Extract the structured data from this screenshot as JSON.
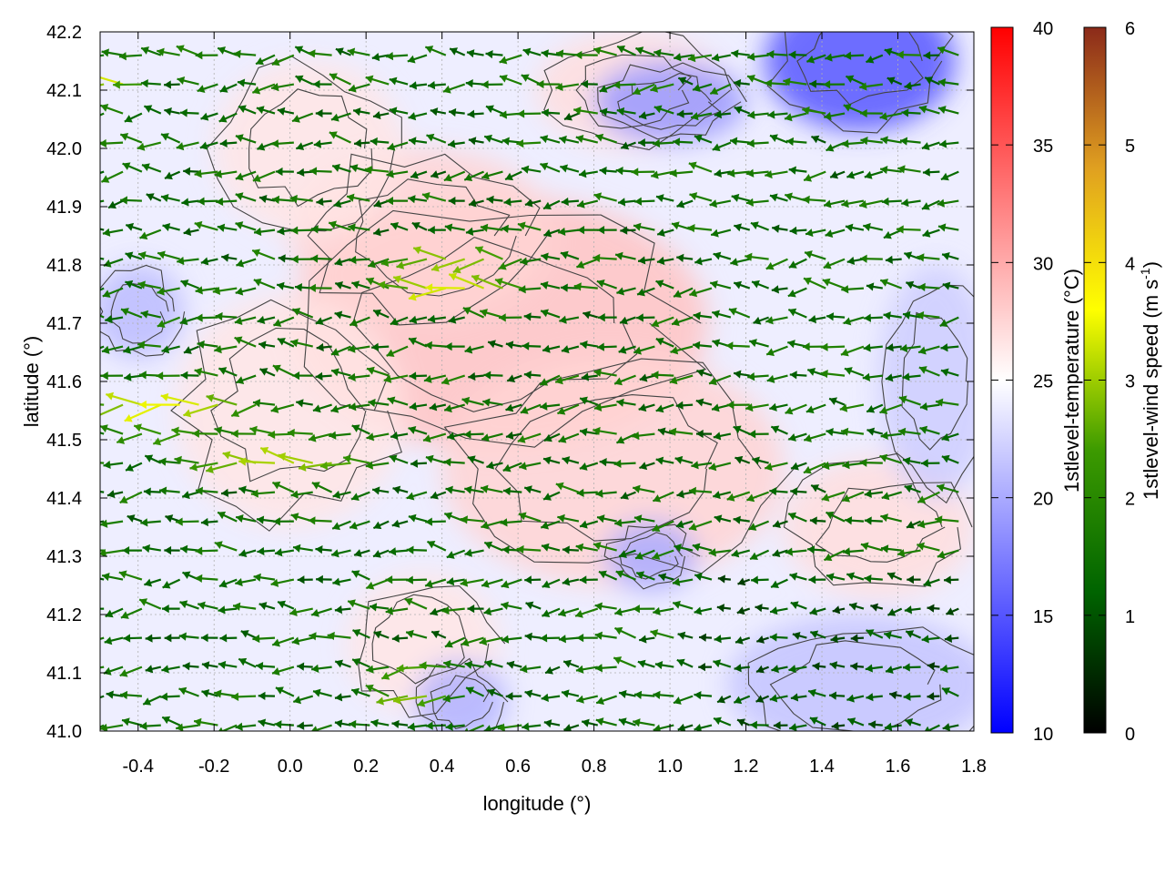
{
  "chart_data": {
    "type": "heatmap",
    "title": "",
    "xlabel": "longitude (°)",
    "ylabel": "latitude (°)",
    "xlim": [
      -0.5,
      1.8
    ],
    "ylim": [
      41.0,
      42.2
    ],
    "x_ticks": [
      "-0.4",
      "-0.2",
      "0.0",
      "0.2",
      "0.4",
      "0.6",
      "0.8",
      "1.0",
      "1.2",
      "1.4",
      "1.6",
      "1.8"
    ],
    "y_ticks": [
      "41.0",
      "41.1",
      "41.2",
      "41.3",
      "41.4",
      "41.5",
      "41.6",
      "41.7",
      "41.8",
      "41.9",
      "42.0",
      "42.1",
      "42.2"
    ],
    "grid": true,
    "temperature_colorbar": {
      "label": "1stlevel-temperature (°C)",
      "range": [
        10,
        40
      ],
      "ticks": [
        "10",
        "15",
        "20",
        "25",
        "30",
        "35",
        "40"
      ],
      "colors": [
        "#0000ff",
        "#ffffff",
        "#ff0000"
      ]
    },
    "wind_colorbar": {
      "label_main": "1stlevel-wind speed (m s",
      "label_sup": "-1",
      "label_end": ")",
      "range": [
        0,
        6
      ],
      "ticks": [
        "0",
        "1",
        "2",
        "3",
        "4",
        "5",
        "6"
      ],
      "colors": [
        "#000000",
        "#006400",
        "#3c9a00",
        "#ffff00",
        "#e0a020",
        "#8b2a1a"
      ]
    },
    "temperature_field": {
      "background_c": 24,
      "anomalies": [
        {
          "lon": 0.55,
          "lat": 41.7,
          "rx": 0.55,
          "ry": 0.22,
          "t_c": 28.5
        },
        {
          "lon": 0.85,
          "lat": 41.45,
          "rx": 0.45,
          "ry": 0.2,
          "t_c": 27.5
        },
        {
          "lon": 0.35,
          "lat": 41.85,
          "rx": 0.35,
          "ry": 0.15,
          "t_c": 27.5
        },
        {
          "lon": 0.0,
          "lat": 41.55,
          "rx": 0.3,
          "ry": 0.2,
          "t_c": 26.5
        },
        {
          "lon": 0.9,
          "lat": 42.1,
          "rx": 0.25,
          "ry": 0.1,
          "t_c": 27.0
        },
        {
          "lon": 1.55,
          "lat": 41.35,
          "rx": 0.25,
          "ry": 0.12,
          "t_c": 27.0
        },
        {
          "lon": 0.35,
          "lat": 41.15,
          "rx": 0.2,
          "ry": 0.12,
          "t_c": 26.5
        },
        {
          "lon": 0.05,
          "lat": 42.0,
          "rx": 0.25,
          "ry": 0.15,
          "t_c": 26.5
        },
        {
          "lon": 1.5,
          "lat": 42.15,
          "rx": 0.25,
          "ry": 0.12,
          "t_c": 15.0
        },
        {
          "lon": 1.0,
          "lat": 42.08,
          "rx": 0.2,
          "ry": 0.07,
          "t_c": 19.0
        },
        {
          "lon": 1.5,
          "lat": 41.08,
          "rx": 0.35,
          "ry": 0.12,
          "t_c": 21.5
        },
        {
          "lon": 0.95,
          "lat": 41.3,
          "rx": 0.12,
          "ry": 0.06,
          "t_c": 20.0
        },
        {
          "lon": -0.4,
          "lat": 41.72,
          "rx": 0.12,
          "ry": 0.08,
          "t_c": 21.0
        },
        {
          "lon": 1.7,
          "lat": 41.6,
          "rx": 0.15,
          "ry": 0.2,
          "t_c": 22.0
        },
        {
          "lon": 0.45,
          "lat": 41.05,
          "rx": 0.12,
          "ry": 0.07,
          "t_c": 20.5
        }
      ]
    },
    "wind_field": {
      "grid_lon_start": -0.49,
      "grid_lon_step": 0.05,
      "grid_lat_start": 41.01,
      "grid_lat_step": 0.05,
      "note_direction": "predominantly easterly (arrows point west)",
      "speed_cores": [
        {
          "lon": 0.45,
          "lat": 41.78,
          "rx": 0.25,
          "ry": 0.06,
          "speed": 3.8
        },
        {
          "lon": -0.3,
          "lat": 41.55,
          "rx": 0.3,
          "ry": 0.06,
          "speed": 3.6
        },
        {
          "lon": 0.0,
          "lat": 41.47,
          "rx": 0.35,
          "ry": 0.06,
          "speed": 3.2
        },
        {
          "lon": 0.35,
          "lat": 41.08,
          "rx": 0.15,
          "ry": 0.06,
          "speed": 3.2
        },
        {
          "lon": -0.45,
          "lat": 42.1,
          "rx": 0.1,
          "ry": 0.05,
          "speed": 3.5
        }
      ]
    }
  }
}
